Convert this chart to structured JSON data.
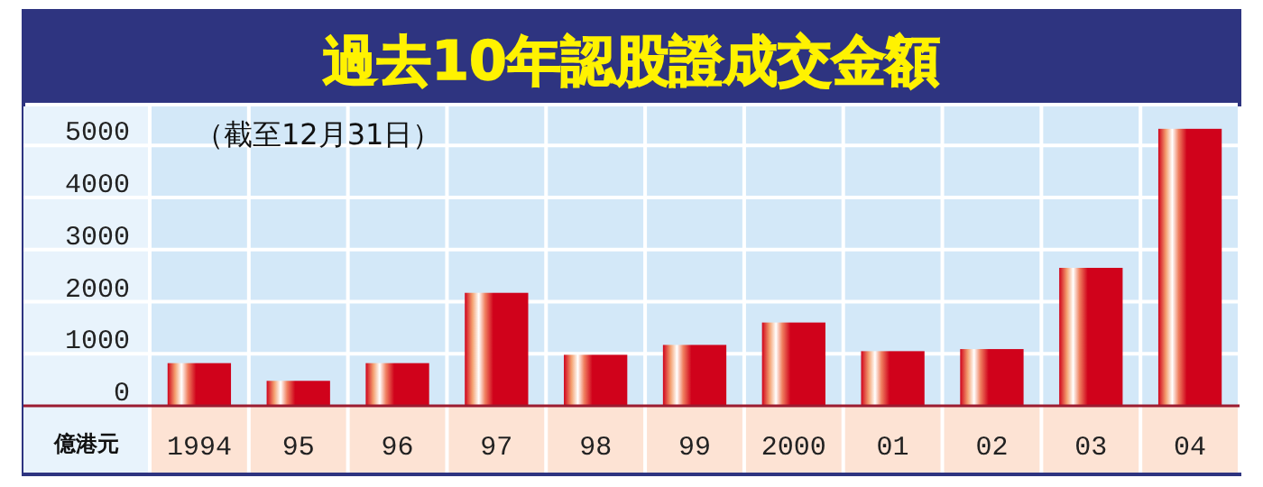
{
  "chart_data": {
    "type": "bar",
    "title": "過去10年認股證成交金額",
    "ylabel": "億港元",
    "annotations": [
      "（截至12月31日）"
    ],
    "categories": [
      "1994",
      "95",
      "96",
      "97",
      "98",
      "99",
      "2000",
      "01",
      "02",
      "03",
      "04"
    ],
    "values": [
      820,
      480,
      820,
      2170,
      980,
      1170,
      1600,
      1050,
      1090,
      2650,
      5320
    ],
    "color": "#d0021b",
    "ylim": [
      0,
      5750
    ],
    "yticks": [
      0,
      1000,
      2000,
      3000,
      4000,
      5000
    ],
    "grid": true
  }
}
